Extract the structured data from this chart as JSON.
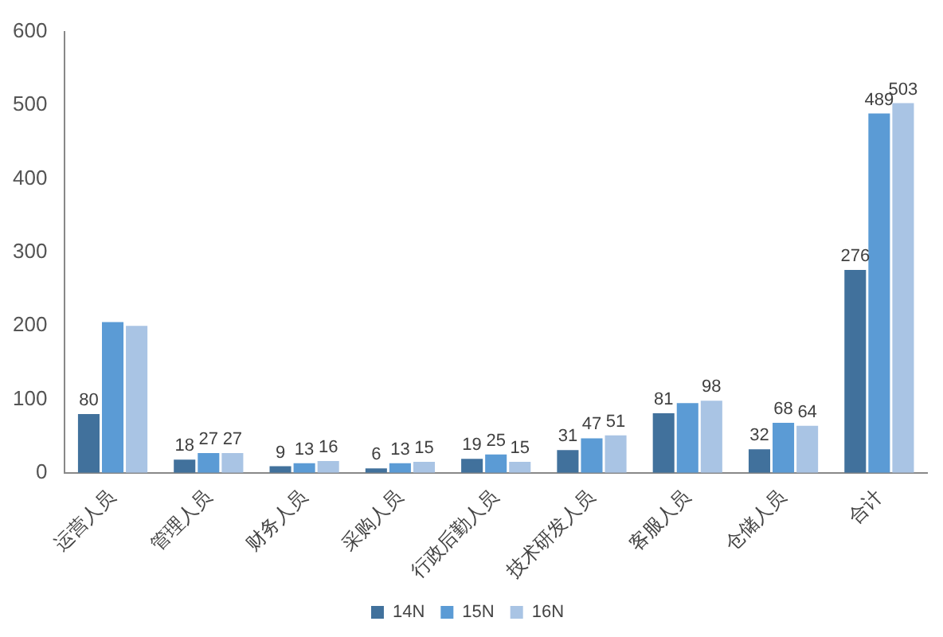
{
  "chart_data": {
    "type": "bar",
    "categories": [
      "运营人员",
      "管理人员",
      "财务人员",
      "采购人员",
      "行政后勤人员",
      "技术研发人员",
      "客服人员",
      "仓储人员",
      "合计"
    ],
    "series": [
      {
        "name": "14N",
        "color": "#41719c",
        "values": [
          80,
          18,
          9,
          6,
          19,
          31,
          81,
          32,
          276
        ],
        "value_labels": [
          "80",
          "18",
          "9",
          "6",
          "19",
          "31",
          "81",
          "32",
          "276"
        ]
      },
      {
        "name": "15N",
        "color": "#5b9bd5",
        "values": [
          205,
          27,
          13,
          13,
          25,
          47,
          95,
          68,
          489
        ],
        "value_labels": [
          null,
          "27",
          "13",
          "13",
          "25",
          "47",
          null,
          "68",
          "489"
        ]
      },
      {
        "name": "16N",
        "color": "#a9c4e4",
        "values": [
          200,
          27,
          16,
          15,
          15,
          51,
          98,
          64,
          503
        ],
        "value_labels": [
          null,
          "27",
          "16",
          "15",
          "15",
          "51",
          "98",
          "64",
          "503"
        ]
      }
    ],
    "ylim": [
      0,
      600
    ],
    "yticks": [
      0,
      100,
      200,
      300,
      400,
      500,
      600
    ],
    "grid": false,
    "legend": "bottom"
  }
}
